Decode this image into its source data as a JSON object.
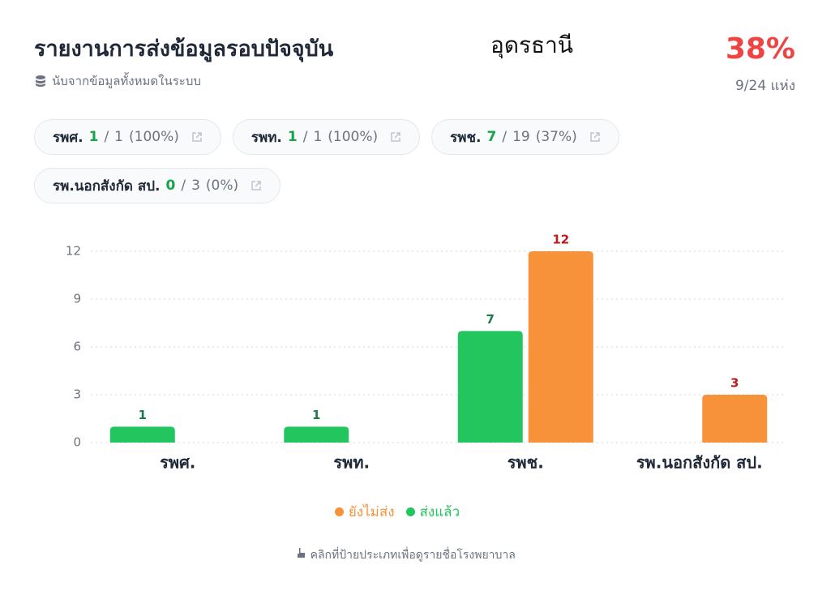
{
  "header": {
    "title": "รายงานการส่งข้อมูลรอบปัจจุบัน",
    "subtitle": "นับจากข้อมูลทั้งหมดในระบบ",
    "province": "อุดรธานี",
    "percent": "38%",
    "count": "9/24 แห่ง"
  },
  "chips": {
    "separator": "/",
    "items": [
      {
        "name": "รพศ.",
        "sent": 1,
        "total": 1,
        "percent": "(100%)"
      },
      {
        "name": "รพท.",
        "sent": 1,
        "total": 1,
        "percent": "(100%)"
      },
      {
        "name": "รพช.",
        "sent": 7,
        "total": 19,
        "percent": "(37%)"
      },
      {
        "name": "รพ.นอกสังกัด สป.",
        "sent": 0,
        "total": 3,
        "percent": "(0%)"
      }
    ]
  },
  "chart_data": {
    "type": "bar",
    "categories": [
      "รพศ.",
      "รพท.",
      "รพช.",
      "รพ.นอกสังกัด สป."
    ],
    "series": [
      {
        "name": "ยังไม่ส่ง",
        "color": "#f7923a",
        "label_color": "#b91c1c",
        "values": [
          0,
          0,
          12,
          3
        ]
      },
      {
        "name": "ส่งแล้ว",
        "color": "#22c55e",
        "label_color": "#1f7a4a",
        "values": [
          1,
          1,
          7,
          0
        ]
      }
    ],
    "ylim": [
      0,
      12
    ],
    "yticks": [
      0,
      3,
      6,
      9,
      12
    ],
    "grid": true
  },
  "hint": "คลิกที่ป้ายประเภทเพื่อดูรายชื่อโรงพยาบาล"
}
